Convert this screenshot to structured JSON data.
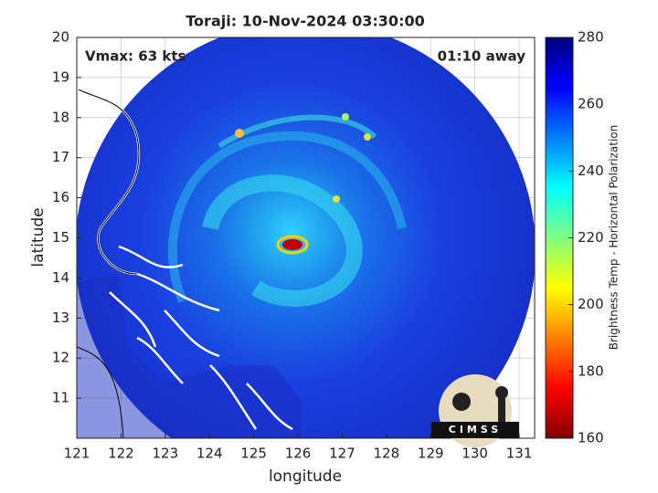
{
  "chart_data": {
    "type": "image",
    "title": "Toraji: 10-Nov-2024 03:30:00",
    "annotations": [
      "Vmax: 63 kts",
      "01:10 away"
    ],
    "x_label": "longitude",
    "y_label": "latitude",
    "xlim": [
      121,
      131.35
    ],
    "xticks": [
      121,
      122,
      123,
      124,
      125,
      126,
      127,
      128,
      129,
      130,
      131
    ],
    "ylim": [
      10,
      20
    ],
    "yticks": [
      11,
      12,
      13,
      14,
      15,
      16,
      17,
      18,
      19,
      20
    ],
    "grid": true,
    "colorbar": {
      "label": "Brightness Temp - Horizontal Polarization",
      "lim": [
        160,
        280
      ],
      "ticks": [
        160,
        180,
        200,
        220,
        240,
        260,
        280
      ]
    },
    "logo": "CIMSS"
  }
}
